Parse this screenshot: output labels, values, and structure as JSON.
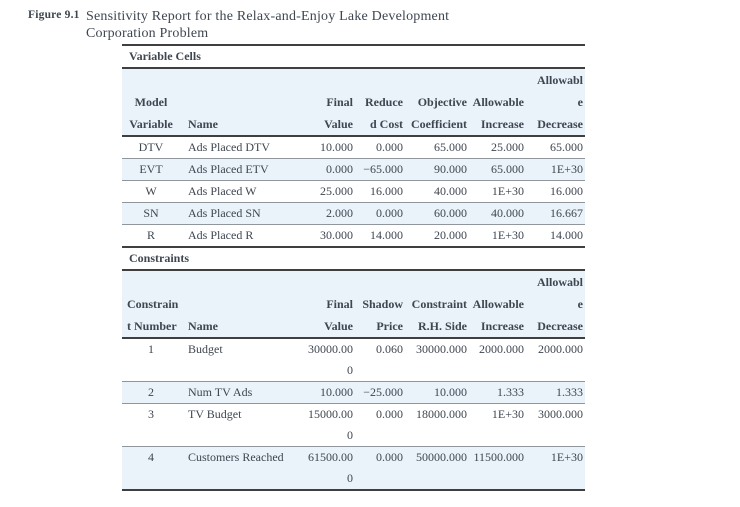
{
  "figure_label": "Figure 9.1",
  "title": {
    "line1": "Sensitivity Report for the Relax-and-Enjoy Lake Development",
    "line2": "Corporation Problem"
  },
  "colors": {
    "row_band": "#eaf2fa",
    "text": "#3f4650",
    "rule_dark": "#3f3f3f",
    "rule_light": "#8f969c"
  },
  "variable_cells": {
    "section_label": "Variable Cells",
    "header_rows": [
      [
        "",
        "",
        "",
        "",
        "",
        "",
        "Allowabl"
      ],
      [
        "Model",
        "",
        "Final",
        "Reduce",
        "Objective",
        "Allowable",
        "e"
      ],
      [
        "Variable",
        "Name",
        "Value",
        "d Cost",
        "Coefficient",
        "Increase",
        "Decrease"
      ]
    ],
    "rows": [
      {
        "variable": "DTV",
        "name": "Ads Placed DTV",
        "final_value": "10.000",
        "reduced_cost": "0.000",
        "objective_coefficient": "65.000",
        "allowable_increase": "25.000",
        "allowable_decrease": "65.000"
      },
      {
        "variable": "EVT",
        "name": "Ads Placed ETV",
        "final_value": "0.000",
        "reduced_cost": "−65.000",
        "objective_coefficient": "90.000",
        "allowable_increase": "65.000",
        "allowable_decrease": "1E+30"
      },
      {
        "variable": "W",
        "name": "Ads Placed W",
        "final_value": "25.000",
        "reduced_cost": "16.000",
        "objective_coefficient": "40.000",
        "allowable_increase": "1E+30",
        "allowable_decrease": "16.000"
      },
      {
        "variable": "SN",
        "name": "Ads Placed SN",
        "final_value": "2.000",
        "reduced_cost": "0.000",
        "objective_coefficient": "60.000",
        "allowable_increase": "40.000",
        "allowable_decrease": "16.667"
      },
      {
        "variable": "R",
        "name": "Ads Placed R",
        "final_value": "30.000",
        "reduced_cost": "14.000",
        "objective_coefficient": "20.000",
        "allowable_increase": "1E+30",
        "allowable_decrease": "14.000"
      }
    ]
  },
  "constraints": {
    "section_label": "Constraints",
    "header_rows": [
      [
        "",
        "",
        "",
        "",
        "",
        "",
        "Allowabl"
      ],
      [
        "Constrain",
        "",
        "Final",
        "Shadow",
        "Constraint",
        "Allowable",
        "e"
      ],
      [
        "t Number",
        "Name",
        "Value",
        "Price",
        "R.H. Side",
        "Increase",
        "Decrease"
      ]
    ],
    "rows": [
      {
        "number": "1",
        "name": "Budget",
        "final_value": "30000.000",
        "shadow_price": "0.060",
        "rhs": "30000.000",
        "allowable_increase": "2000.000",
        "allowable_decrease": "2000.000"
      },
      {
        "number": "2",
        "name": "Num TV Ads",
        "final_value": "10.000",
        "shadow_price": "−25.000",
        "rhs": "10.000",
        "allowable_increase": "1.333",
        "allowable_decrease": "1.333"
      },
      {
        "number": "3",
        "name": "TV Budget",
        "final_value": "15000.000",
        "shadow_price": "0.000",
        "rhs": "18000.000",
        "allowable_increase": "1E+30",
        "allowable_decrease": "3000.000"
      },
      {
        "number": "4",
        "name": "Customers Reached",
        "final_value": "61500.000",
        "shadow_price": "0.000",
        "rhs": "50000.000",
        "allowable_increase": "11500.000",
        "allowable_decrease": "1E+30"
      }
    ]
  }
}
